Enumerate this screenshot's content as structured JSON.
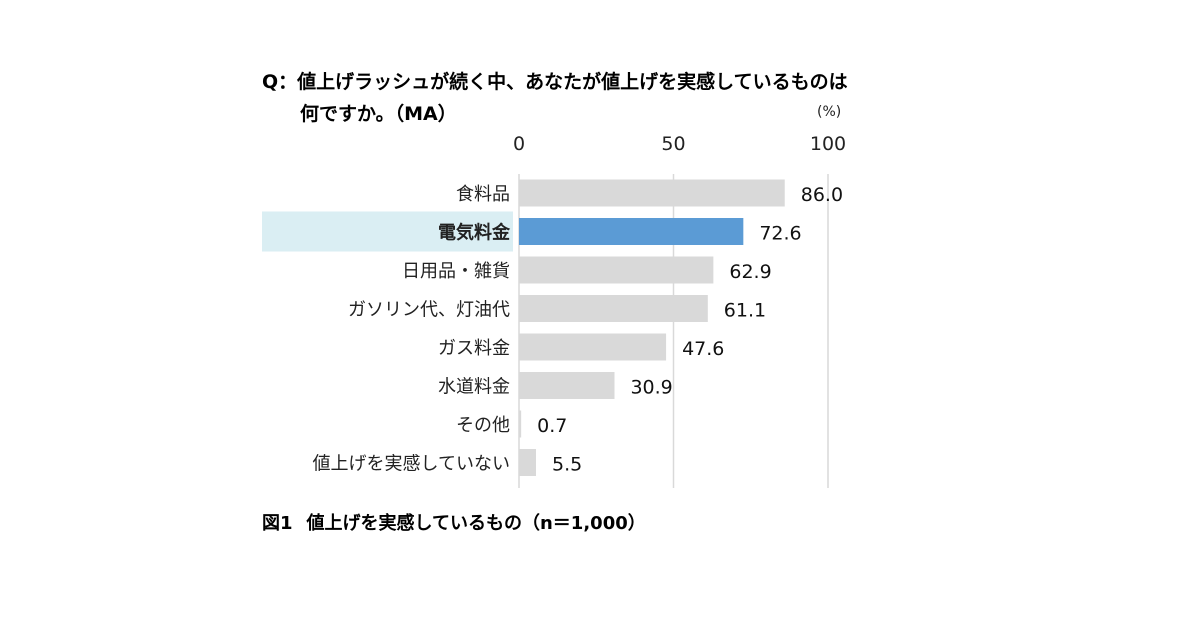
{
  "question": {
    "line1": "Q：値上げラッシュが続く中、あなたが値上げを実感しているものは",
    "line2": "何ですか。（MA）"
  },
  "unit_label": "(%)",
  "caption": {
    "figure": "図1",
    "text": "値上げを実感しているもの（n＝1,000）"
  },
  "colors": {
    "bar": "#d9d9d9",
    "highlight_bar": "#5b9bd5",
    "highlight_band": "#daeef3",
    "grid": "#d9d9d9"
  },
  "chart_data": {
    "type": "bar",
    "orientation": "horizontal",
    "categories": [
      "食料品",
      "電気料金",
      "日用品・雑貨",
      "ガソリン代、灯油代",
      "ガス料金",
      "水道料金",
      "その他",
      "値上げを実感していない"
    ],
    "values": [
      86.0,
      72.6,
      62.9,
      61.1,
      47.6,
      30.9,
      0.7,
      5.5
    ],
    "value_labels": [
      "86.0",
      "72.6",
      "62.9",
      "61.1",
      "47.6",
      "30.9",
      "0.7",
      "5.5"
    ],
    "highlighted_category": "電気料金",
    "xlim": [
      0,
      100
    ],
    "xticks": [
      0,
      50,
      100
    ],
    "grid": true,
    "legend": "none"
  }
}
